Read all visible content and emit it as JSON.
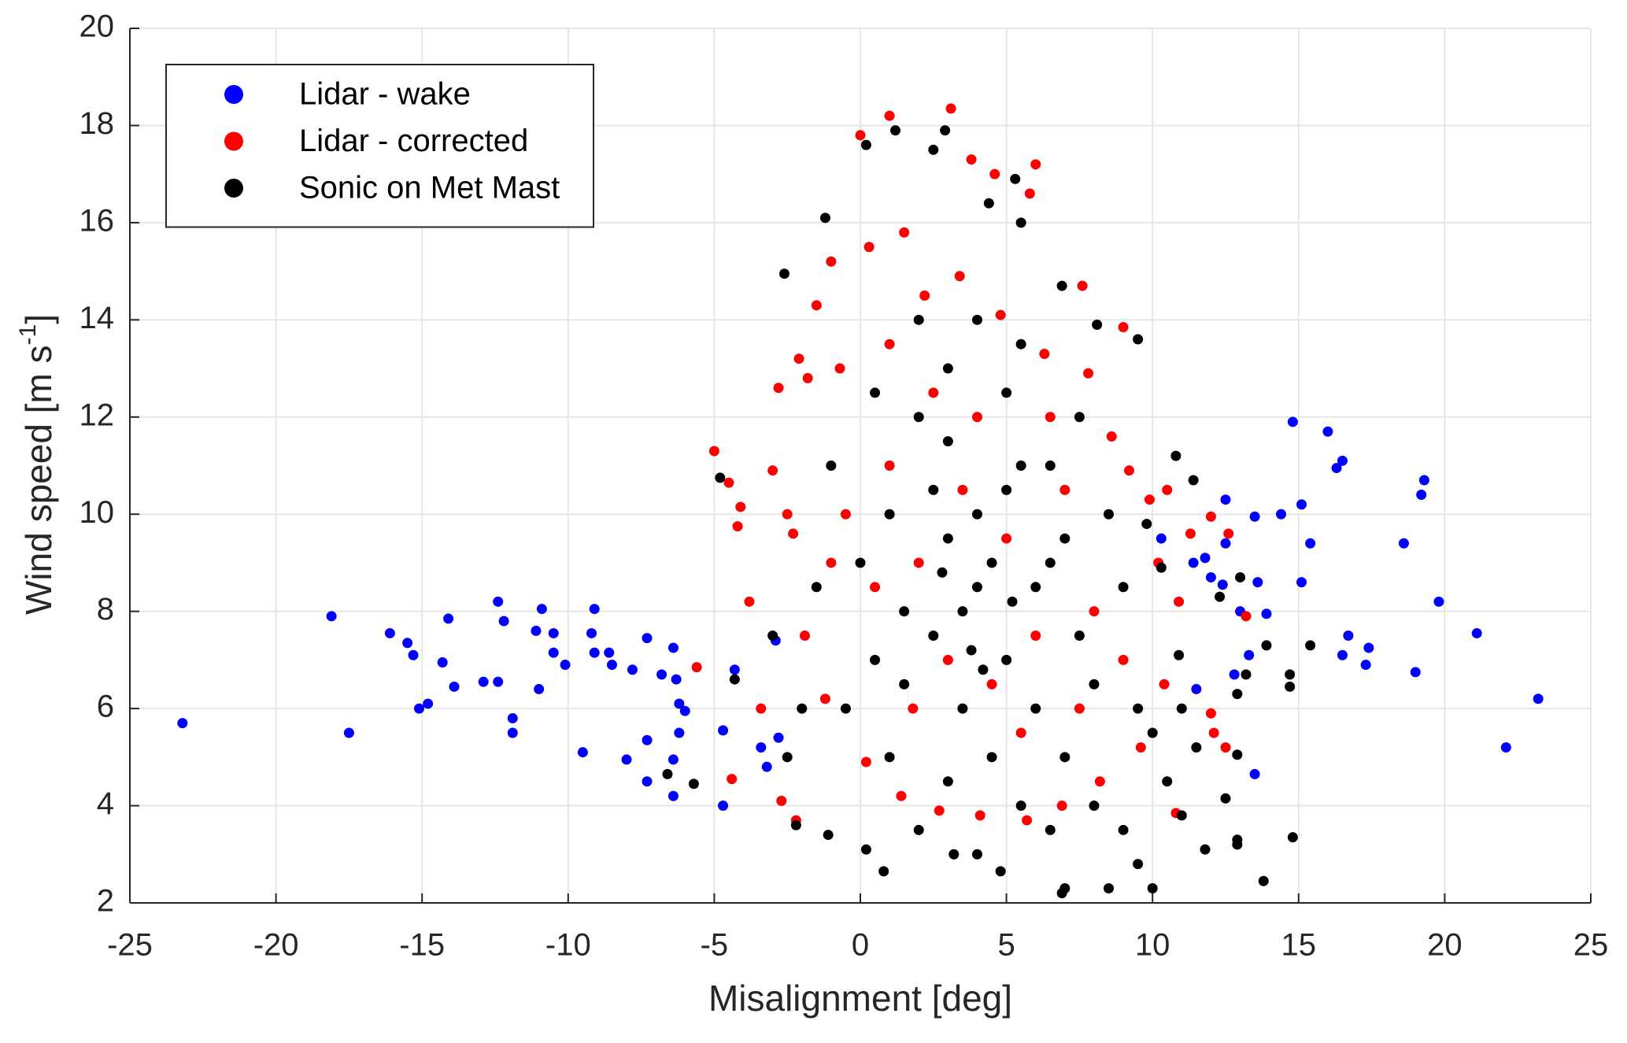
{
  "chart_data": {
    "type": "scatter",
    "xlabel": "Misalignment [deg]",
    "ylabel": {
      "text": "Wind speed [m s",
      "sup": "-1",
      "end": "]"
    },
    "xlim": [
      -25,
      25
    ],
    "xticks": [
      -25,
      -20,
      -15,
      -10,
      -5,
      0,
      5,
      10,
      15,
      20,
      25
    ],
    "ylim": [
      2,
      20
    ],
    "yticks": [
      2,
      4,
      6,
      8,
      10,
      12,
      14,
      16,
      18,
      20
    ],
    "grid": true,
    "legend": "upper left",
    "series": [
      {
        "name": "Lidar - wake",
        "color": "#0000ff",
        "points": [
          [
            -23.2,
            5.7
          ],
          [
            -18.1,
            7.9
          ],
          [
            -17.5,
            5.5
          ],
          [
            -16.1,
            7.55
          ],
          [
            -15.5,
            7.35
          ],
          [
            -15.3,
            7.1
          ],
          [
            -15.1,
            6.0
          ],
          [
            -14.8,
            6.1
          ],
          [
            -14.3,
            6.95
          ],
          [
            -14.1,
            7.85
          ],
          [
            -13.9,
            6.45
          ],
          [
            -12.9,
            6.55
          ],
          [
            -12.4,
            6.55
          ],
          [
            -12.4,
            8.2
          ],
          [
            -12.2,
            7.8
          ],
          [
            -11.9,
            5.8
          ],
          [
            -11.9,
            5.5
          ],
          [
            -11.1,
            7.6
          ],
          [
            -11.0,
            6.4
          ],
          [
            -10.9,
            8.05
          ],
          [
            -10.5,
            7.55
          ],
          [
            -10.5,
            7.15
          ],
          [
            -10.1,
            6.9
          ],
          [
            -9.5,
            5.1
          ],
          [
            -9.2,
            7.55
          ],
          [
            -9.1,
            8.05
          ],
          [
            -9.1,
            7.15
          ],
          [
            -8.6,
            7.15
          ],
          [
            -8.5,
            6.9
          ],
          [
            -8.0,
            4.95
          ],
          [
            -7.8,
            6.8
          ],
          [
            -7.3,
            7.45
          ],
          [
            -7.3,
            5.35
          ],
          [
            -7.3,
            4.5
          ],
          [
            -6.8,
            6.7
          ],
          [
            -6.4,
            7.25
          ],
          [
            -6.3,
            6.6
          ],
          [
            -6.2,
            6.1
          ],
          [
            -6.2,
            5.5
          ],
          [
            -6.4,
            4.95
          ],
          [
            -6.4,
            4.2
          ],
          [
            -6.0,
            5.95
          ],
          [
            -4.7,
            5.55
          ],
          [
            -4.7,
            4.0
          ],
          [
            -4.3,
            6.8
          ],
          [
            -3.4,
            5.2
          ],
          [
            -3.2,
            4.8
          ],
          [
            -2.9,
            7.4
          ],
          [
            -2.8,
            5.4
          ],
          [
            11.4,
            9.0
          ],
          [
            11.8,
            9.1
          ],
          [
            12.0,
            8.7
          ],
          [
            12.4,
            8.55
          ],
          [
            12.5,
            10.3
          ],
          [
            12.5,
            9.4
          ],
          [
            13.0,
            8.0
          ],
          [
            13.5,
            9.95
          ],
          [
            13.6,
            8.6
          ],
          [
            13.9,
            7.95
          ],
          [
            14.4,
            10.0
          ],
          [
            14.8,
            11.9
          ],
          [
            15.1,
            10.2
          ],
          [
            15.4,
            9.4
          ],
          [
            15.1,
            8.6
          ],
          [
            16.0,
            11.7
          ],
          [
            16.3,
            10.95
          ],
          [
            16.5,
            11.1
          ],
          [
            16.5,
            7.1
          ],
          [
            16.7,
            7.5
          ],
          [
            17.3,
            6.9
          ],
          [
            17.4,
            7.25
          ],
          [
            18.6,
            9.4
          ],
          [
            19.0,
            6.75
          ],
          [
            19.2,
            10.4
          ],
          [
            19.3,
            10.7
          ],
          [
            19.8,
            8.2
          ],
          [
            21.1,
            7.55
          ],
          [
            22.1,
            5.2
          ],
          [
            23.2,
            6.2
          ],
          [
            13.5,
            4.65
          ],
          [
            13.3,
            7.1
          ],
          [
            11.5,
            6.4
          ],
          [
            12.8,
            6.7
          ],
          [
            10.3,
            9.5
          ]
        ]
      },
      {
        "name": "Lidar - corrected",
        "color": "#ff0000",
        "points": [
          [
            -5.0,
            11.3
          ],
          [
            -4.5,
            10.65
          ],
          [
            -4.1,
            10.15
          ],
          [
            -4.2,
            9.75
          ],
          [
            -5.6,
            6.85
          ],
          [
            -4.4,
            4.55
          ],
          [
            -2.7,
            4.1
          ],
          [
            -2.2,
            3.7
          ],
          [
            -2.8,
            12.6
          ],
          [
            -1.0,
            15.2
          ],
          [
            0.0,
            17.8
          ],
          [
            1.0,
            18.2
          ],
          [
            3.1,
            18.35
          ],
          [
            3.8,
            17.3
          ],
          [
            4.6,
            17.0
          ],
          [
            6.0,
            17.2
          ],
          [
            5.8,
            16.6
          ],
          [
            7.6,
            14.7
          ],
          [
            9.0,
            13.85
          ],
          [
            9.9,
            10.3
          ],
          [
            10.5,
            10.5
          ],
          [
            11.3,
            9.6
          ],
          [
            12.0,
            9.95
          ],
          [
            12.6,
            9.6
          ],
          [
            13.2,
            7.9
          ],
          [
            12.0,
            5.9
          ],
          [
            12.1,
            5.5
          ],
          [
            12.5,
            5.2
          ],
          [
            10.8,
            3.85
          ],
          [
            -3.4,
            6.0
          ],
          [
            -1.8,
            12.8
          ],
          [
            -2.1,
            13.2
          ],
          [
            -1.5,
            14.3
          ],
          [
            -0.7,
            13.0
          ],
          [
            0.3,
            15.5
          ],
          [
            1.5,
            15.8
          ],
          [
            2.2,
            14.5
          ],
          [
            3.4,
            14.9
          ],
          [
            4.8,
            14.1
          ],
          [
            6.3,
            13.3
          ],
          [
            7.8,
            12.9
          ],
          [
            8.6,
            11.6
          ],
          [
            9.2,
            10.9
          ],
          [
            -3.0,
            10.9
          ],
          [
            -2.5,
            10.0
          ],
          [
            -3.8,
            8.2
          ],
          [
            -2.3,
            9.6
          ],
          [
            -1.9,
            7.5
          ],
          [
            -1.2,
            6.2
          ],
          [
            0.2,
            4.9
          ],
          [
            1.4,
            4.2
          ],
          [
            2.7,
            3.9
          ],
          [
            4.1,
            3.8
          ],
          [
            5.7,
            3.7
          ],
          [
            6.9,
            4.0
          ],
          [
            8.2,
            4.5
          ],
          [
            9.6,
            5.2
          ],
          [
            10.4,
            6.5
          ],
          [
            10.9,
            8.2
          ],
          [
            10.2,
            9.0
          ],
          [
            1.0,
            11.0
          ],
          [
            2.0,
            9.0
          ],
          [
            3.0,
            7.0
          ],
          [
            4.0,
            12.0
          ],
          [
            5.0,
            9.5
          ],
          [
            6.0,
            7.5
          ],
          [
            7.0,
            10.5
          ],
          [
            8.0,
            8.0
          ],
          [
            0.5,
            8.5
          ],
          [
            1.8,
            6.0
          ],
          [
            3.5,
            10.5
          ],
          [
            5.5,
            5.5
          ],
          [
            6.5,
            12.0
          ],
          [
            -0.5,
            10.0
          ],
          [
            2.5,
            12.5
          ],
          [
            4.5,
            6.5
          ],
          [
            7.5,
            6.0
          ],
          [
            9.0,
            7.0
          ],
          [
            -1.0,
            9.0
          ],
          [
            1.0,
            13.5
          ]
        ]
      },
      {
        "name": "Sonic on Met Mast",
        "color": "#000000",
        "points": [
          [
            -5.7,
            4.45
          ],
          [
            -6.6,
            4.65
          ],
          [
            -4.8,
            10.75
          ],
          [
            -4.3,
            6.6
          ],
          [
            -2.6,
            14.95
          ],
          [
            -1.2,
            16.1
          ],
          [
            0.2,
            17.6
          ],
          [
            1.2,
            17.9
          ],
          [
            2.5,
            17.5
          ],
          [
            2.9,
            17.9
          ],
          [
            4.4,
            16.4
          ],
          [
            5.3,
            16.9
          ],
          [
            5.5,
            16.0
          ],
          [
            6.9,
            14.7
          ],
          [
            8.1,
            13.9
          ],
          [
            9.5,
            13.6
          ],
          [
            10.8,
            11.2
          ],
          [
            11.4,
            10.7
          ],
          [
            12.3,
            8.3
          ],
          [
            13.0,
            8.7
          ],
          [
            13.9,
            7.3
          ],
          [
            15.4,
            7.3
          ],
          [
            14.7,
            6.7
          ],
          [
            14.7,
            6.45
          ],
          [
            14.8,
            3.35
          ],
          [
            13.8,
            2.45
          ],
          [
            12.9,
            3.3
          ],
          [
            12.9,
            3.2
          ],
          [
            11.8,
            3.1
          ],
          [
            11.0,
            3.8
          ],
          [
            10.0,
            2.3
          ],
          [
            9.5,
            2.8
          ],
          [
            8.5,
            2.3
          ],
          [
            7.0,
            2.3
          ],
          [
            6.9,
            2.2
          ],
          [
            4.8,
            2.65
          ],
          [
            3.2,
            3.0
          ],
          [
            0.8,
            2.65
          ],
          [
            0.2,
            3.1
          ],
          [
            -1.1,
            3.4
          ],
          [
            -2.2,
            3.6
          ],
          [
            12.5,
            4.15
          ],
          [
            12.9,
            5.05
          ],
          [
            12.9,
            6.3
          ],
          [
            13.2,
            6.7
          ],
          [
            11.5,
            5.2
          ],
          [
            10.9,
            7.1
          ],
          [
            10.3,
            8.9
          ],
          [
            9.8,
            9.8
          ],
          [
            2.0,
            14.0
          ],
          [
            3.0,
            13.0
          ],
          [
            4.0,
            10.0
          ],
          [
            3.5,
            8.0
          ],
          [
            4.5,
            9.0
          ],
          [
            5.0,
            7.0
          ],
          [
            2.5,
            10.5
          ],
          [
            1.5,
            8.0
          ],
          [
            0.5,
            7.0
          ],
          [
            -0.5,
            6.0
          ],
          [
            1.0,
            5.0
          ],
          [
            3.0,
            4.5
          ],
          [
            5.5,
            4.0
          ],
          [
            7.0,
            5.0
          ],
          [
            8.0,
            6.5
          ],
          [
            6.0,
            8.5
          ],
          [
            7.0,
            9.5
          ],
          [
            6.5,
            11.0
          ],
          [
            5.0,
            12.5
          ],
          [
            3.0,
            11.5
          ],
          [
            2.0,
            12.0
          ],
          [
            1.0,
            10.0
          ],
          [
            0.0,
            9.0
          ],
          [
            -1.5,
            8.5
          ],
          [
            -2.0,
            6.0
          ],
          [
            -1.0,
            11.0
          ],
          [
            0.5,
            12.5
          ],
          [
            4.0,
            14.0
          ],
          [
            5.5,
            13.5
          ],
          [
            7.5,
            12.0
          ],
          [
            8.5,
            10.0
          ],
          [
            9.0,
            8.5
          ],
          [
            9.5,
            6.0
          ],
          [
            8.0,
            4.0
          ],
          [
            6.5,
            3.5
          ],
          [
            4.0,
            3.0
          ],
          [
            2.0,
            3.5
          ],
          [
            3.5,
            6.0
          ],
          [
            4.5,
            5.0
          ],
          [
            2.5,
            7.5
          ],
          [
            6.0,
            6.0
          ],
          [
            7.5,
            7.5
          ],
          [
            4.0,
            8.5
          ],
          [
            3.0,
            9.5
          ],
          [
            5.0,
            10.5
          ],
          [
            1.5,
            6.5
          ],
          [
            -3.0,
            7.5
          ],
          [
            -2.5,
            5.0
          ],
          [
            10.0,
            5.5
          ],
          [
            11.0,
            6.0
          ],
          [
            10.5,
            4.5
          ],
          [
            9.0,
            3.5
          ],
          [
            5.5,
            11.0
          ],
          [
            6.5,
            9.0
          ],
          [
            3.8,
            7.2
          ],
          [
            4.2,
            6.8
          ],
          [
            2.8,
            8.8
          ],
          [
            5.2,
            8.2
          ]
        ]
      }
    ]
  }
}
